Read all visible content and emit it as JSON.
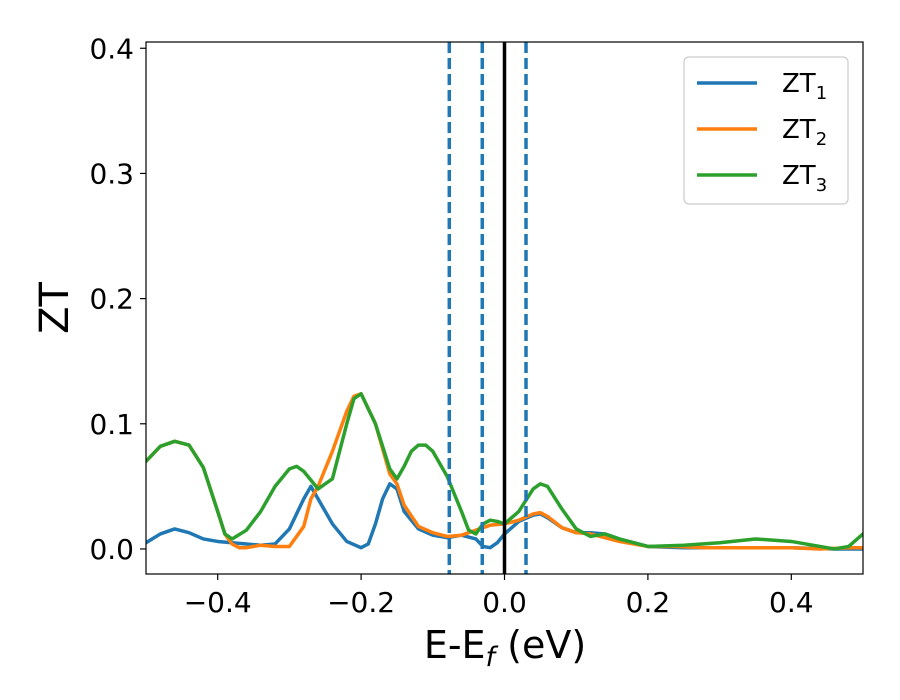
{
  "chart_data": {
    "type": "line",
    "xlabel": {
      "main": "E-E",
      "sub": "f",
      "tail": " (eV)"
    },
    "ylabel": "ZT",
    "xlim": [
      -0.5,
      0.5
    ],
    "ylim": [
      -0.02,
      0.405
    ],
    "xticks": [
      -0.4,
      -0.2,
      0.0,
      0.2,
      0.4
    ],
    "xtick_labels": [
      "−0.4",
      "−0.2",
      "0.0",
      "0.2",
      "0.4"
    ],
    "yticks": [
      0.0,
      0.1,
      0.2,
      0.3,
      0.4
    ],
    "ytick_labels": [
      "0.0",
      "0.1",
      "0.2",
      "0.3",
      "0.4"
    ],
    "legend_position": "top-right",
    "grid": false,
    "series": [
      {
        "name": "ZT",
        "name_sub": "1",
        "color": "#1f77b4",
        "x": [
          -0.5,
          -0.48,
          -0.46,
          -0.44,
          -0.42,
          -0.4,
          -0.38,
          -0.36,
          -0.34,
          -0.32,
          -0.3,
          -0.28,
          -0.27,
          -0.26,
          -0.24,
          -0.22,
          -0.2,
          -0.19,
          -0.18,
          -0.17,
          -0.16,
          -0.15,
          -0.14,
          -0.12,
          -0.1,
          -0.08,
          -0.06,
          -0.04,
          -0.03,
          -0.02,
          -0.01,
          0.0,
          0.02,
          0.04,
          0.05,
          0.06,
          0.08,
          0.1,
          0.12,
          0.14,
          0.16,
          0.2,
          0.25,
          0.3,
          0.35,
          0.4,
          0.46,
          0.5
        ],
        "y": [
          0.005,
          0.012,
          0.016,
          0.013,
          0.008,
          0.006,
          0.005,
          0.004,
          0.003,
          0.004,
          0.016,
          0.04,
          0.05,
          0.04,
          0.02,
          0.006,
          0.001,
          0.004,
          0.02,
          0.04,
          0.052,
          0.048,
          0.03,
          0.016,
          0.011,
          0.009,
          0.011,
          0.008,
          0.002,
          0.001,
          0.005,
          0.012,
          0.022,
          0.027,
          0.028,
          0.025,
          0.017,
          0.013,
          0.013,
          0.012,
          0.008,
          0.002,
          0.001,
          0.001,
          0.001,
          0.001,
          0.0,
          0.0
        ]
      },
      {
        "name": "ZT",
        "name_sub": "2",
        "color": "#ff7f0e",
        "x": [
          -0.5,
          -0.48,
          -0.46,
          -0.44,
          -0.42,
          -0.4,
          -0.39,
          -0.38,
          -0.37,
          -0.36,
          -0.34,
          -0.32,
          -0.3,
          -0.28,
          -0.27,
          -0.26,
          -0.24,
          -0.22,
          -0.21,
          -0.2,
          -0.18,
          -0.16,
          -0.15,
          -0.14,
          -0.12,
          -0.1,
          -0.08,
          -0.06,
          -0.04,
          -0.02,
          0.0,
          0.02,
          0.04,
          0.05,
          0.06,
          0.08,
          0.1,
          0.12,
          0.16,
          0.2,
          0.24,
          0.28,
          0.32,
          0.36,
          0.4,
          0.44,
          0.48,
          0.5
        ],
        "y": [
          0.07,
          0.082,
          0.086,
          0.083,
          0.065,
          0.03,
          0.012,
          0.004,
          0.001,
          0.001,
          0.003,
          0.002,
          0.002,
          0.018,
          0.04,
          0.05,
          0.078,
          0.11,
          0.122,
          0.124,
          0.1,
          0.06,
          0.052,
          0.035,
          0.018,
          0.013,
          0.01,
          0.011,
          0.015,
          0.019,
          0.02,
          0.023,
          0.028,
          0.029,
          0.026,
          0.017,
          0.013,
          0.012,
          0.006,
          0.002,
          0.002,
          0.001,
          0.001,
          0.001,
          0.001,
          0.0,
          0.001,
          0.001
        ]
      },
      {
        "name": "ZT",
        "name_sub": "3",
        "color": "#2ca02c",
        "x": [
          -0.5,
          -0.48,
          -0.46,
          -0.44,
          -0.42,
          -0.4,
          -0.39,
          -0.38,
          -0.36,
          -0.34,
          -0.32,
          -0.3,
          -0.29,
          -0.28,
          -0.26,
          -0.24,
          -0.22,
          -0.21,
          -0.2,
          -0.18,
          -0.16,
          -0.15,
          -0.14,
          -0.13,
          -0.12,
          -0.11,
          -0.1,
          -0.08,
          -0.06,
          -0.05,
          -0.04,
          -0.03,
          -0.02,
          -0.01,
          0.0,
          0.02,
          0.04,
          0.05,
          0.06,
          0.08,
          0.1,
          0.12,
          0.14,
          0.16,
          0.2,
          0.25,
          0.3,
          0.35,
          0.4,
          0.44,
          0.46,
          0.48,
          0.5
        ],
        "y": [
          0.07,
          0.082,
          0.086,
          0.083,
          0.065,
          0.03,
          0.012,
          0.008,
          0.015,
          0.03,
          0.05,
          0.064,
          0.066,
          0.062,
          0.048,
          0.056,
          0.1,
          0.12,
          0.124,
          0.1,
          0.064,
          0.056,
          0.066,
          0.078,
          0.083,
          0.083,
          0.078,
          0.058,
          0.03,
          0.015,
          0.012,
          0.02,
          0.023,
          0.022,
          0.02,
          0.03,
          0.048,
          0.052,
          0.05,
          0.032,
          0.016,
          0.01,
          0.012,
          0.008,
          0.002,
          0.003,
          0.005,
          0.008,
          0.006,
          0.002,
          0.0,
          0.002,
          0.012
        ]
      }
    ],
    "vlines": [
      {
        "x": -0.077,
        "style": "dashed",
        "color": "#1f77b4"
      },
      {
        "x": -0.031,
        "style": "dashed",
        "color": "#1f77b4"
      },
      {
        "x": 0.0,
        "style": "solid",
        "color": "#000000"
      },
      {
        "x": 0.03,
        "style": "dashed",
        "color": "#1f77b4"
      }
    ]
  }
}
